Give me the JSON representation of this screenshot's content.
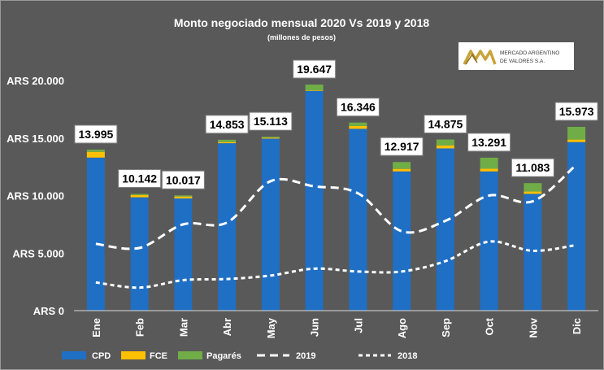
{
  "chart_data": {
    "type": "bar",
    "title": "Monto negociado mensual 2020 Vs 2019 y 2018",
    "subtitle": "(millones de pesos)",
    "categories": [
      "Ene",
      "Feb",
      "Mar",
      "Abr",
      "May",
      "Jun",
      "Jul",
      "Ago",
      "Sep",
      "Oct",
      "Nov",
      "Dic"
    ],
    "stacked": true,
    "series": [
      {
        "name": "CPD",
        "type": "bar",
        "color": "#1f6fc5",
        "values": [
          13300,
          9850,
          9750,
          14550,
          14950,
          19100,
          15800,
          12100,
          14100,
          12100,
          10150,
          14650
        ]
      },
      {
        "name": "FCE",
        "type": "bar",
        "color": "#ffc000",
        "values": [
          500,
          200,
          170,
          100,
          80,
          50,
          250,
          220,
          250,
          230,
          200,
          220
        ]
      },
      {
        "name": "Pagarés",
        "type": "bar",
        "color": "#70ad47",
        "values": [
          195,
          92,
          97,
          203,
          83,
          497,
          296,
          597,
          525,
          961,
          733,
          1103
        ]
      },
      {
        "name": "2019",
        "type": "line",
        "style": "dashed",
        "color": "#ffffff",
        "values": [
          5800,
          5450,
          7500,
          7650,
          11250,
          10800,
          10200,
          6900,
          7800,
          10000,
          9500,
          12700
        ]
      },
      {
        "name": "2018",
        "type": "line",
        "style": "dotted",
        "color": "#ffffff",
        "values": [
          2450,
          2000,
          2650,
          2750,
          3050,
          3650,
          3400,
          3400,
          4300,
          6000,
          5200,
          5700
        ]
      }
    ],
    "data_labels": [
      "13.995",
      "10.142",
      "10.017",
      "14.853",
      "15.113",
      "19.647",
      "16.346",
      "12.917",
      "14.875",
      "13.291",
      "11.083",
      "15.973"
    ],
    "yticks": [
      0,
      5000,
      10000,
      15000,
      20000
    ],
    "ytick_labels": [
      "ARS 0",
      "ARS 5.000",
      "ARS 10.000",
      "ARS 15.000",
      "ARS 20.000"
    ],
    "ylim": [
      0,
      20000
    ],
    "grid": false,
    "legend_position": "bottom-left",
    "legend": [
      "CPD",
      "FCE",
      "Pagarés",
      "2019",
      "2018"
    ],
    "background": "#595959"
  },
  "logo": {
    "line1": "MERCADO ARGENTINO",
    "line2": "DE VALORES S.A."
  }
}
